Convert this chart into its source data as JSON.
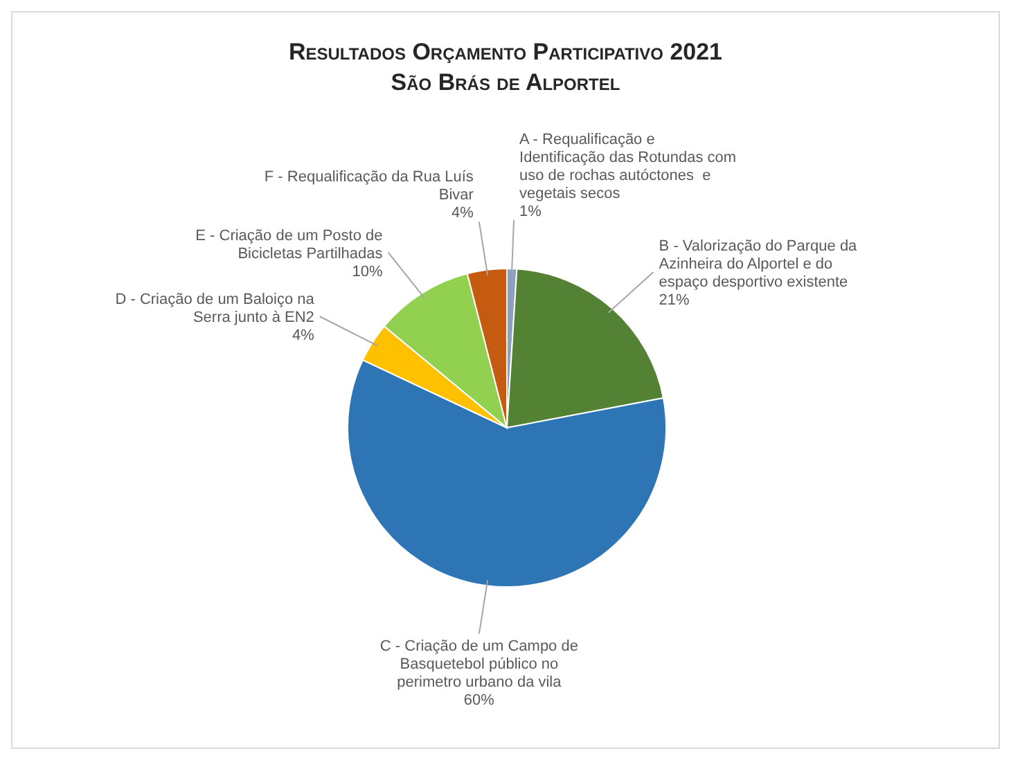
{
  "chart_data": {
    "type": "pie",
    "title": "Resultados Orçamento Participativo 2021",
    "subtitle": "São Brás de Alportel",
    "categories": [
      "A - Requalificação e Identificação das Rotundas com uso de rochas autóctones  e vegetais secos",
      "B - Valorização do Parque da Azinheira do Alportel e do espaço desportivo existente",
      "C - Criação de um Campo de Basquetebol público no perimetro urbano da vila",
      "D - Criação de um Baloiço na Serra junto à EN2",
      "E - Criação de um Posto de Bicicletas Partilhadas",
      "F - Requalificação da Rua Luís Bivar"
    ],
    "values": [
      1,
      21,
      60,
      4,
      10,
      4
    ],
    "value_labels": [
      "1%",
      "21%",
      "60%",
      "4%",
      "10%",
      "4%"
    ],
    "colors": [
      "#8da0bf",
      "#548235",
      "#2e75b6",
      "#ffc000",
      "#92d050",
      "#c55a11"
    ]
  }
}
